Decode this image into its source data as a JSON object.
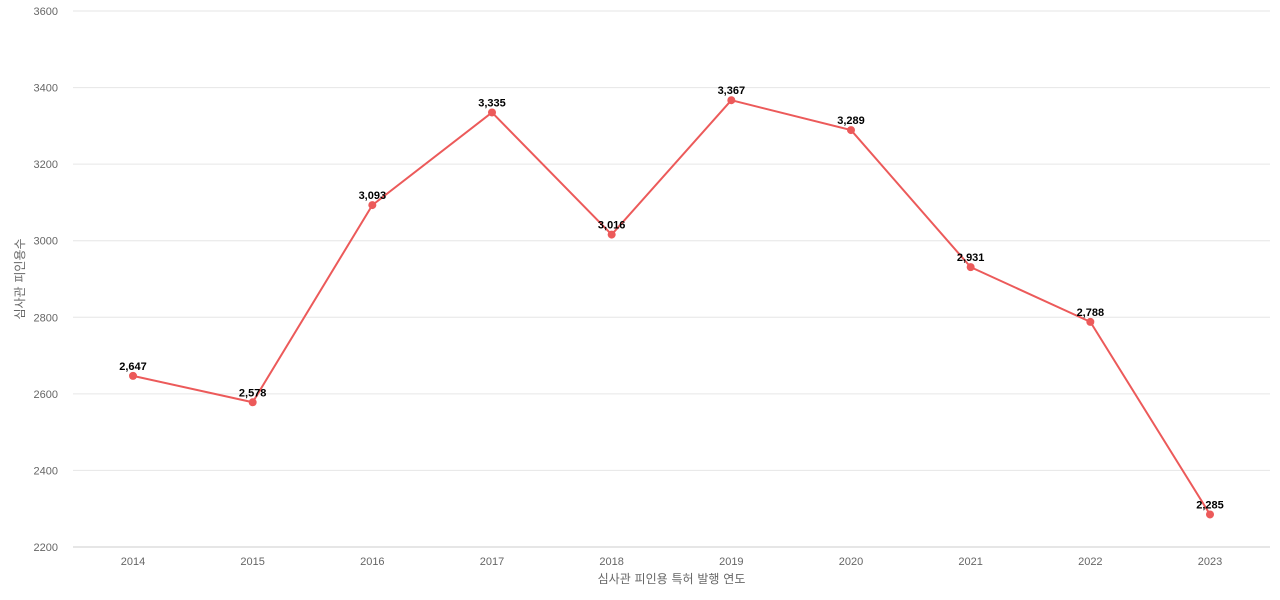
{
  "chart_data": {
    "type": "line",
    "title": "",
    "xlabel": "심사관 피인용 특허 발행 연도",
    "ylabel": "심사관 피인용수",
    "categories": [
      "2014",
      "2015",
      "2016",
      "2017",
      "2018",
      "2019",
      "2020",
      "2021",
      "2022",
      "2023"
    ],
    "series": [
      {
        "values": [
          2647,
          2578,
          3093,
          3335,
          3016,
          3367,
          3289,
          2931,
          2788,
          2285
        ],
        "labels": [
          "2,647",
          "2,578",
          "3,093",
          "3,335",
          "3,016",
          "3,367",
          "3,289",
          "2,931",
          "2,788",
          "2,285"
        ],
        "color": "#ec5a5a"
      }
    ],
    "ylim": [
      2200,
      3600
    ],
    "yticks": [
      "2200",
      "2400",
      "2600",
      "2800",
      "3000",
      "3200",
      "3400",
      "3600"
    ],
    "grid": true,
    "legend": "none"
  }
}
